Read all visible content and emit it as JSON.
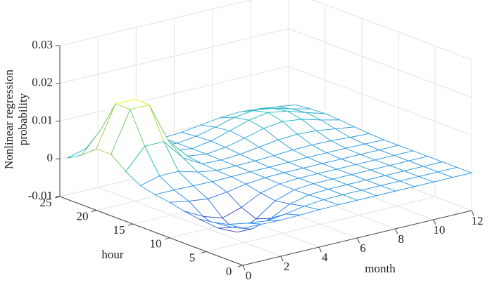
{
  "chart_data": {
    "type": "surface",
    "xlabel": "month",
    "ylabel": "hour",
    "zlabel": [
      "Nonlinear regression",
      "probability"
    ],
    "x": [
      0,
      1,
      2,
      3,
      4,
      5,
      6,
      7,
      8,
      9,
      10,
      11,
      12
    ],
    "y": [
      0,
      2,
      4,
      6,
      8,
      10,
      12,
      14,
      16,
      18,
      20,
      22,
      24
    ],
    "z": [
      [
        -0.0001,
        -0.0003,
        -0.0004,
        -0.0003,
        -0.0001,
        0,
        0,
        0,
        0,
        0,
        0,
        0,
        0
      ],
      [
        -0.0006,
        -0.0015,
        -0.0021,
        -0.0015,
        -0.0006,
        -0.0001,
        0,
        0,
        0,
        0,
        0,
        0,
        0
      ],
      [
        -0.0015,
        -0.0041,
        -0.0057,
        -0.0041,
        -0.0015,
        -0.0003,
        0,
        0,
        0,
        0,
        0,
        0,
        0
      ],
      [
        -0.0021,
        -0.0057,
        -0.008,
        -0.0057,
        -0.0021,
        -0.0004,
        0,
        0,
        0,
        0,
        0,
        0,
        0
      ],
      [
        -0.0015,
        -0.0041,
        -0.0057,
        -0.0041,
        -0.0015,
        -0.0003,
        0,
        0,
        0,
        0,
        0,
        0,
        0
      ],
      [
        -0.0006,
        -0.0015,
        -0.0021,
        -0.0015,
        -0.0006,
        -0.0001,
        0,
        0,
        0,
        0,
        0,
        0,
        0
      ],
      [
        0,
        0,
        -0.0001,
        -0.0002,
        -0.0001,
        0,
        0,
        0.0001,
        0.0002,
        0.0002,
        0.0002,
        0.0001,
        0
      ],
      [
        0.0009,
        0.0023,
        0.0023,
        0.0009,
        0.0001,
        0.0001,
        0.0002,
        0.0004,
        0.0007,
        0.0008,
        0.0007,
        0.0004,
        0.0002
      ],
      [
        0.0032,
        0.0087,
        0.0087,
        0.0032,
        0.0004,
        0.0002,
        0.0005,
        0.0012,
        0.0019,
        0.0022,
        0.0019,
        0.0012,
        0.0005
      ],
      [
        0.0063,
        0.017,
        0.017,
        0.0063,
        0.001,
        0.0003,
        0.0009,
        0.0021,
        0.0035,
        0.0041,
        0.0035,
        0.0021,
        0.0009
      ],
      [
        0.0063,
        0.017,
        0.017,
        0.0063,
        0.001,
        0.0003,
        0.0011,
        0.0026,
        0.0042,
        0.005,
        0.0042,
        0.0026,
        0.0011
      ],
      [
        0.0032,
        0.0087,
        0.0087,
        0.0032,
        0.0005,
        0.0003,
        0.0009,
        0.0021,
        0.0035,
        0.0041,
        0.0035,
        0.0021,
        0.0009
      ],
      [
        0.0009,
        0.0023,
        0.0023,
        0.0009,
        0.0001,
        0.0002,
        0.0005,
        0.0012,
        0.0019,
        0.0022,
        0.0019,
        0.0012,
        0.0005
      ]
    ],
    "xlim": [
      0,
      12
    ],
    "xticks": [
      0,
      2,
      4,
      6,
      8,
      10,
      12
    ],
    "ylim": [
      0,
      25
    ],
    "yticks": [
      0,
      5,
      10,
      15,
      20,
      25
    ],
    "zlim": [
      -0.01,
      0.03
    ],
    "zticks": [
      -0.01,
      0,
      0.01,
      0.02,
      0.03
    ],
    "grid": true,
    "colormap": [
      "#3e26a8",
      "#2e87f5",
      "#27c0bb",
      "#92cc4a",
      "#f9fb14"
    ]
  }
}
